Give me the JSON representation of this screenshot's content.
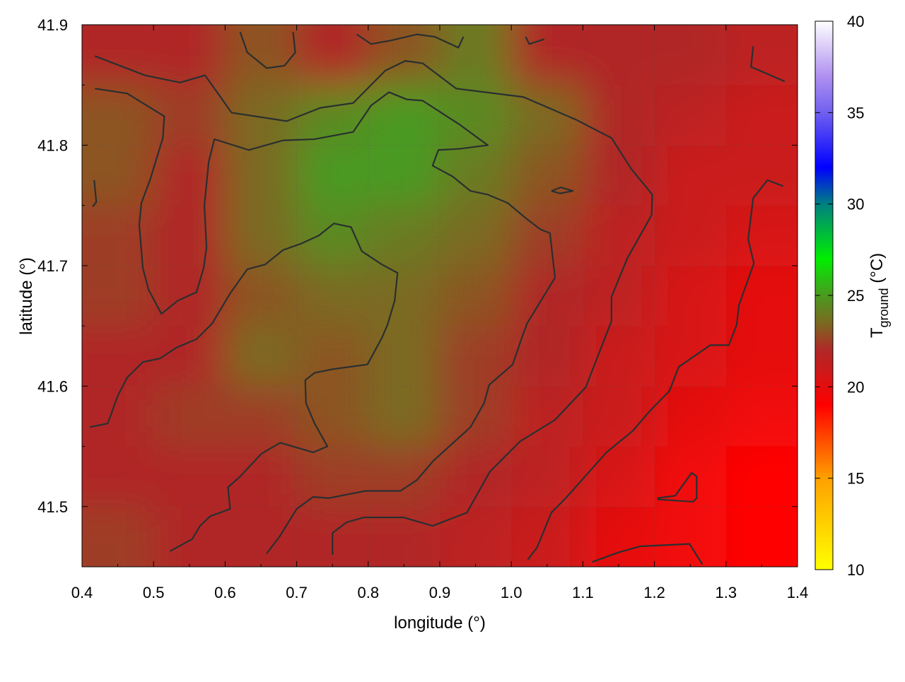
{
  "chart_data": {
    "type": "heatmap",
    "xlabel": "longitude (°)",
    "ylabel": "latitude (°)",
    "colorbar_label": "T",
    "colorbar_label_sub": "ground",
    "colorbar_label_unit": " (°C)",
    "xlim": [
      0.4,
      1.4
    ],
    "ylim": [
      41.45,
      41.9
    ],
    "x_ticks": [
      "0.4",
      "0.5",
      "0.6",
      "0.7",
      "0.8",
      "0.9",
      "1.0",
      "1.1",
      "1.2",
      "1.3",
      "1.4"
    ],
    "y_ticks": [
      "41.5",
      "41.6",
      "41.7",
      "41.8",
      "41.9"
    ],
    "colorbar_range": [
      10,
      40
    ],
    "colorbar_ticks": [
      "10",
      "15",
      "20",
      "25",
      "30",
      "35",
      "40"
    ],
    "grid": true,
    "palette": [
      [
        10,
        "#ffff00"
      ],
      [
        15,
        "#ffa000"
      ],
      [
        19,
        "#ff0000"
      ],
      [
        22,
        "#b02828"
      ],
      [
        23.5,
        "#7a6a20"
      ],
      [
        25,
        "#4a9a20"
      ],
      [
        27,
        "#00ee00"
      ],
      [
        30,
        "#008080"
      ],
      [
        32,
        "#0000ff"
      ],
      [
        35,
        "#7060f0"
      ],
      [
        37,
        "#b090f0"
      ],
      [
        40,
        "#ffffff"
      ]
    ],
    "grid_lon": [
      0.45,
      0.55,
      0.65,
      0.75,
      0.85,
      0.95,
      1.05,
      1.15,
      1.25,
      1.35
    ],
    "grid_lat": [
      41.875,
      41.825,
      41.775,
      41.725,
      41.675,
      41.625,
      41.575,
      41.525,
      41.475
    ],
    "values": [
      [
        22,
        22,
        23,
        22,
        23,
        24,
        22,
        22,
        22,
        21.5
      ],
      [
        23,
        22.5,
        23.5,
        24.5,
        25,
        24.5,
        23.5,
        22,
        21.5,
        21
      ],
      [
        23,
        22,
        23.5,
        25,
        25,
        24,
        23,
        22,
        21,
        21
      ],
      [
        22.5,
        22,
        23.5,
        24.5,
        24,
        23.5,
        22.5,
        21.5,
        21,
        20.5
      ],
      [
        22.5,
        22,
        23,
        23.5,
        23.5,
        23,
        22,
        21.5,
        20.5,
        20
      ],
      [
        22,
        22,
        23.5,
        23,
        23.5,
        22.5,
        22,
        21,
        20.5,
        20
      ],
      [
        22,
        22.5,
        22.5,
        23,
        23.5,
        22.5,
        21.5,
        21,
        20,
        19.5
      ],
      [
        22,
        22,
        22,
        22.5,
        22.5,
        22,
        21.5,
        20.5,
        19.5,
        19
      ],
      [
        22.5,
        22,
        22,
        22,
        22,
        21.5,
        21,
        20,
        19.5,
        19
      ]
    ],
    "contours": [
      [
        [
          0.418,
          41.874
        ],
        [
          0.488,
          41.858
        ],
        [
          0.537,
          41.852
        ],
        [
          0.572,
          41.858
        ],
        [
          0.609,
          41.827
        ],
        [
          0.686,
          41.82
        ],
        [
          0.733,
          41.831
        ],
        [
          0.779,
          41.835
        ],
        [
          0.824,
          41.862
        ],
        [
          0.852,
          41.87
        ],
        [
          0.876,
          41.868
        ],
        [
          0.923,
          41.847
        ],
        [
          1.017,
          41.84
        ],
        [
          1.091,
          41.821
        ],
        [
          1.14,
          41.806
        ],
        [
          1.168,
          41.78
        ],
        [
          1.197,
          41.759
        ],
        [
          1.196,
          41.742
        ],
        [
          1.162,
          41.706
        ],
        [
          1.14,
          41.674
        ],
        [
          1.14,
          41.654
        ],
        [
          1.104,
          41.599
        ],
        [
          1.061,
          41.572
        ],
        [
          1.012,
          41.554
        ],
        [
          0.97,
          41.529
        ],
        [
          0.938,
          41.495
        ],
        [
          0.89,
          41.484
        ],
        [
          0.849,
          41.491
        ],
        [
          0.794,
          41.491
        ],
        [
          0.77,
          41.487
        ],
        [
          0.75,
          41.478
        ],
        [
          0.75,
          41.46
        ]
      ],
      [
        [
          0.418,
          41.847
        ],
        [
          0.463,
          41.843
        ],
        [
          0.515,
          41.824
        ],
        [
          0.513,
          41.806
        ],
        [
          0.495,
          41.771
        ],
        [
          0.483,
          41.752
        ],
        [
          0.48,
          41.734
        ],
        [
          0.485,
          41.698
        ],
        [
          0.493,
          41.68
        ],
        [
          0.511,
          41.66
        ],
        [
          0.534,
          41.671
        ],
        [
          0.56,
          41.678
        ],
        [
          0.57,
          41.698
        ],
        [
          0.574,
          41.715
        ],
        [
          0.571,
          41.75
        ],
        [
          0.577,
          41.786
        ],
        [
          0.585,
          41.805
        ],
        [
          0.633,
          41.796
        ],
        [
          0.681,
          41.804
        ],
        [
          0.725,
          41.805
        ],
        [
          0.779,
          41.811
        ],
        [
          0.804,
          41.833
        ],
        [
          0.829,
          41.844
        ],
        [
          0.854,
          41.838
        ],
        [
          0.876,
          41.837
        ],
        [
          0.928,
          41.817
        ],
        [
          0.967,
          41.8
        ],
        [
          0.928,
          41.797
        ],
        [
          0.898,
          41.796
        ],
        [
          0.89,
          41.783
        ],
        [
          0.918,
          41.774
        ],
        [
          0.943,
          41.762
        ],
        [
          0.967,
          41.759
        ],
        [
          0.995,
          41.752
        ],
        [
          1.019,
          41.74
        ],
        [
          1.041,
          41.73
        ],
        [
          1.054,
          41.727
        ],
        [
          1.061,
          41.69
        ],
        [
          1.022,
          41.652
        ],
        [
          1.014,
          41.639
        ],
        [
          1.002,
          41.618
        ],
        [
          0.969,
          41.601
        ],
        [
          0.962,
          41.586
        ],
        [
          0.943,
          41.566
        ],
        [
          0.891,
          41.538
        ],
        [
          0.868,
          41.522
        ],
        [
          0.845,
          41.513
        ],
        [
          0.796,
          41.513
        ],
        [
          0.745,
          41.507
        ],
        [
          0.723,
          41.508
        ],
        [
          0.7,
          41.498
        ],
        [
          0.676,
          41.475
        ],
        [
          0.658,
          41.461
        ]
      ],
      [
        [
          0.411,
          41.566
        ],
        [
          0.436,
          41.569
        ],
        [
          0.45,
          41.592
        ],
        [
          0.463,
          41.607
        ],
        [
          0.485,
          41.62
        ],
        [
          0.509,
          41.623
        ],
        [
          0.532,
          41.632
        ],
        [
          0.56,
          41.639
        ],
        [
          0.582,
          41.652
        ],
        [
          0.607,
          41.677
        ],
        [
          0.631,
          41.697
        ],
        [
          0.656,
          41.701
        ],
        [
          0.681,
          41.713
        ],
        [
          0.705,
          41.718
        ],
        [
          0.731,
          41.725
        ],
        [
          0.752,
          41.735
        ],
        [
          0.776,
          41.732
        ],
        [
          0.791,
          41.712
        ],
        [
          0.819,
          41.701
        ],
        [
          0.841,
          41.694
        ],
        [
          0.837,
          41.671
        ],
        [
          0.827,
          41.651
        ],
        [
          0.819,
          41.64
        ],
        [
          0.799,
          41.618
        ],
        [
          0.75,
          41.614
        ],
        [
          0.725,
          41.611
        ],
        [
          0.712,
          41.605
        ],
        [
          0.713,
          41.586
        ],
        [
          0.725,
          41.569
        ],
        [
          0.743,
          41.55
        ],
        [
          0.723,
          41.545
        ],
        [
          0.677,
          41.553
        ],
        [
          0.651,
          41.544
        ],
        [
          0.621,
          41.525
        ],
        [
          0.604,
          41.516
        ],
        [
          0.607,
          41.498
        ],
        [
          0.579,
          41.492
        ],
        [
          0.565,
          41.484
        ],
        [
          0.554,
          41.473
        ],
        [
          0.523,
          41.463
        ]
      ],
      [
        [
          1.38,
          41.766
        ],
        [
          1.358,
          41.771
        ],
        [
          1.338,
          41.756
        ],
        [
          1.331,
          41.722
        ],
        [
          1.339,
          41.702
        ],
        [
          1.318,
          41.667
        ],
        [
          1.315,
          41.651
        ],
        [
          1.304,
          41.634
        ],
        [
          1.278,
          41.634
        ],
        [
          1.234,
          41.616
        ],
        [
          1.221,
          41.596
        ],
        [
          1.193,
          41.579
        ],
        [
          1.17,
          41.563
        ],
        [
          1.133,
          41.545
        ],
        [
          1.076,
          41.507
        ],
        [
          1.056,
          41.495
        ],
        [
          1.036,
          41.466
        ],
        [
          1.023,
          41.456
        ]
      ],
      [
        [
          1.204,
          41.507
        ],
        [
          1.229,
          41.509
        ],
        [
          1.252,
          41.528
        ],
        [
          1.259,
          41.525
        ],
        [
          1.259,
          41.507
        ],
        [
          1.254,
          41.504
        ],
        [
          1.204,
          41.506
        ]
      ],
      [
        [
          1.338,
          41.882
        ],
        [
          1.335,
          41.865
        ],
        [
          1.382,
          41.853
        ]
      ],
      [
        [
          1.113,
          41.454
        ],
        [
          1.15,
          41.462
        ],
        [
          1.18,
          41.467
        ],
        [
          1.249,
          41.469
        ],
        [
          1.267,
          41.452
        ]
      ],
      [
        [
          0.621,
          41.894
        ],
        [
          0.631,
          41.877
        ],
        [
          0.658,
          41.864
        ],
        [
          0.683,
          41.866
        ],
        [
          0.698,
          41.877
        ],
        [
          0.695,
          41.894
        ]
      ],
      [
        [
          0.784,
          41.892
        ],
        [
          0.804,
          41.884
        ],
        [
          0.832,
          41.887
        ],
        [
          0.868,
          41.892
        ],
        [
          0.893,
          41.89
        ],
        [
          0.926,
          41.881
        ],
        [
          0.933,
          41.89
        ]
      ],
      [
        [
          1.02,
          41.89
        ],
        [
          1.025,
          41.884
        ],
        [
          1.046,
          41.888
        ]
      ],
      [
        [
          1.056,
          41.762
        ],
        [
          1.069,
          41.765
        ],
        [
          1.086,
          41.762
        ],
        [
          1.068,
          41.76
        ],
        [
          1.056,
          41.762
        ]
      ],
      [
        [
          0.417,
          41.771
        ],
        [
          0.42,
          41.753
        ],
        [
          0.415,
          41.749
        ]
      ]
    ]
  }
}
